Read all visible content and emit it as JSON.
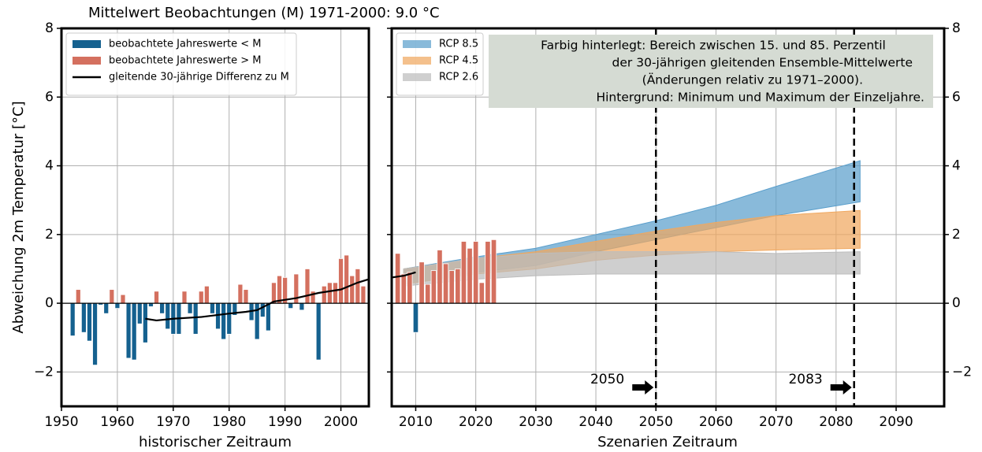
{
  "chart_data": [
    {
      "type": "bar",
      "title": "Mittelwert Beobachtungen (M) 1971-2000: 9.0 °C",
      "ylabel": "Abweichung 2m Temperatur [°C]",
      "xlabel": "historischer Zeitraum",
      "xlim": [
        1950,
        2005
      ],
      "ylim": [
        -3,
        8
      ],
      "xticks": [
        1950,
        1960,
        1970,
        1980,
        1990,
        2000
      ],
      "yticks": [
        {
          "value": -2,
          "label": "−2"
        },
        0,
        2,
        4,
        6,
        8
      ],
      "grid": true,
      "series": [
        {
          "name": "beobachtete Jahreswerte < M",
          "kind": "bar",
          "color": "#15618f",
          "x": [
            1952,
            1954,
            1955,
            1956,
            1957,
            1958,
            1960,
            1962,
            1963,
            1964,
            1965,
            1966,
            1968,
            1969,
            1970,
            1971,
            1973,
            1974,
            1977,
            1978,
            1979,
            1980,
            1981,
            1984,
            1985,
            1986,
            1987,
            1991,
            1993,
            1996
          ],
          "values": [
            -0.95,
            -0.85,
            -1.1,
            -1.8,
            -0.05,
            -0.3,
            -0.15,
            -1.6,
            -1.65,
            -0.6,
            -1.15,
            -0.1,
            -0.3,
            -0.75,
            -0.9,
            -0.9,
            -0.3,
            -0.9,
            -0.3,
            -0.75,
            -1.05,
            -0.9,
            -0.35,
            -0.5,
            -1.05,
            -0.4,
            -0.8,
            -0.15,
            -0.2,
            -1.65
          ]
        },
        {
          "name": "beobachtete Jahreswerte > M",
          "kind": "bar",
          "color": "#d4705f",
          "x": [
            1953,
            1959,
            1961,
            1967,
            1972,
            1975,
            1976,
            1982,
            1983,
            1988,
            1989,
            1990,
            1992,
            1994,
            1995,
            1997,
            1998,
            1999,
            2000,
            2001,
            2002,
            2003,
            2004
          ],
          "values": [
            0.4,
            0.4,
            0.25,
            0.35,
            0.35,
            0.35,
            0.5,
            0.55,
            0.4,
            0.6,
            0.8,
            0.75,
            0.85,
            1.0,
            0.35,
            0.5,
            0.6,
            0.6,
            1.3,
            1.4,
            0.8,
            1.0,
            0.5
          ]
        },
        {
          "name": "gleitende 30-jährige Differenz zu M",
          "kind": "line",
          "color": "#000000",
          "x": [
            1965,
            1967,
            1970,
            1975,
            1980,
            1983,
            1985,
            1988,
            1992,
            1996,
            2000,
            2003,
            2005
          ],
          "values": [
            -0.45,
            -0.5,
            -0.45,
            -0.4,
            -0.3,
            -0.25,
            -0.2,
            0.05,
            0.15,
            0.3,
            0.4,
            0.6,
            0.7
          ]
        }
      ]
    },
    {
      "type": "bar",
      "xlabel": "Szenarien Zeitraum",
      "xlim": [
        2006,
        2098
      ],
      "ylim": [
        -3,
        8
      ],
      "xticks": [
        2010,
        2020,
        2030,
        2040,
        2050,
        2060,
        2070,
        2080,
        2090
      ],
      "yticks": [
        {
          "value": -2,
          "label": "−2"
        },
        0,
        2,
        4,
        6,
        8
      ],
      "grid": true,
      "annotation": [
        "Farbig hinterlegt: Bereich zwischen 15. und 85. Perzentil",
        "der 30-jährigen gleitenden Ensemble-Mittelwerte",
        "(Änderungen relativ zu 1971–2000).",
        "Hintergrund: Minimum und Maximum der Einzeljahre."
      ],
      "markers": [
        2050,
        2083
      ],
      "series": [
        {
          "name": "RCP 8.5",
          "kind": "band",
          "color": "#5b9fcc",
          "x": [
            2008,
            2020,
            2030,
            2040,
            2050,
            2060,
            2070,
            2084
          ],
          "lower": [
            0.55,
            0.9,
            1.1,
            1.5,
            1.85,
            2.2,
            2.55,
            2.95
          ],
          "upper": [
            1.0,
            1.35,
            1.6,
            2.0,
            2.4,
            2.85,
            3.4,
            4.15
          ]
        },
        {
          "name": "RCP 4.5",
          "kind": "band",
          "color": "#f0a860",
          "x": [
            2008,
            2020,
            2030,
            2040,
            2050,
            2060,
            2070,
            2084
          ],
          "lower": [
            0.55,
            0.85,
            1.0,
            1.25,
            1.4,
            1.5,
            1.55,
            1.6
          ],
          "upper": [
            1.0,
            1.3,
            1.5,
            1.8,
            2.1,
            2.35,
            2.55,
            2.7
          ]
        },
        {
          "name": "RCP 2.6",
          "kind": "band",
          "color": "#bdbdbd",
          "x": [
            2008,
            2020,
            2030,
            2040,
            2050,
            2060,
            2070,
            2084
          ],
          "lower": [
            0.5,
            0.7,
            0.8,
            0.85,
            0.85,
            0.85,
            0.85,
            0.85
          ],
          "upper": [
            1.0,
            1.3,
            1.45,
            1.5,
            1.5,
            1.5,
            1.45,
            1.5
          ]
        },
        {
          "kind": "bar",
          "color": "#d4705f",
          "x": [
            2007,
            2008,
            2009,
            2011,
            2012,
            2013,
            2014,
            2015,
            2016,
            2017,
            2018,
            2019,
            2020,
            2021,
            2022,
            2023
          ],
          "values": [
            1.45,
            0.85,
            0.9,
            1.2,
            0.55,
            0.95,
            1.55,
            1.15,
            0.95,
            1.0,
            1.8,
            1.6,
            1.8,
            0.6,
            1.8,
            1.85
          ]
        },
        {
          "kind": "bar",
          "color": "#15618f",
          "x": [
            2010
          ],
          "values": [
            -0.85
          ]
        },
        {
          "kind": "line",
          "color": "#000000",
          "x": [
            2006,
            2008,
            2010
          ],
          "values": [
            0.75,
            0.8,
            0.9
          ]
        }
      ]
    }
  ]
}
